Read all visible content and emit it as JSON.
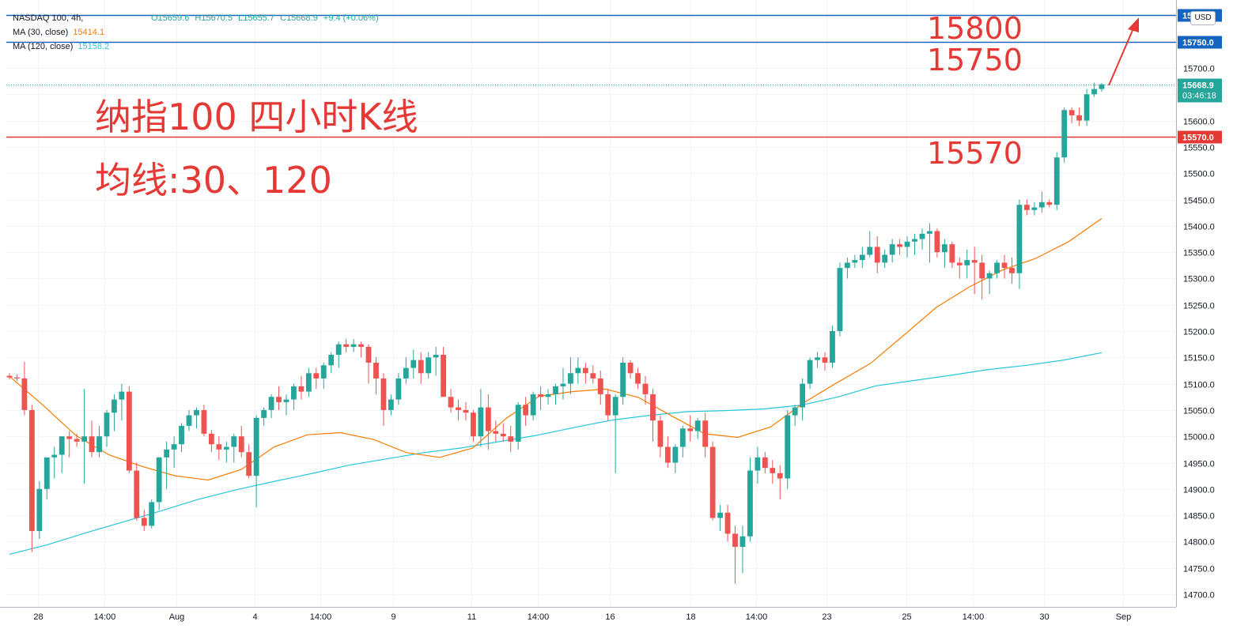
{
  "legend": {
    "symbol": "NASDAQ 100, 4h,",
    "open": "O15659.6",
    "high": "H15670.5",
    "low": "L15655.7",
    "close": "C15668.9",
    "change": "+9.4 (+0.06%)",
    "ma30_label": "MA (30, close)",
    "ma30_value": "15414.1",
    "ma120_label": "MA (120, close)",
    "ma120_value": "15158.2"
  },
  "currency": "USD",
  "annotations": {
    "title": "纳指100 四小时K线",
    "ma_text": "均线:30、120",
    "p1": "15800",
    "p2": "15750",
    "p3": "15570"
  },
  "colors": {
    "up": "#26a69a",
    "down": "#ef5350",
    "ma30": "#f57c00",
    "ma120": "#26c6da",
    "hline_blue": "#1565c0",
    "hline_red": "#e53935",
    "annotation": "#e53935"
  },
  "chart_data": {
    "type": "candlestick",
    "ylim": [
      14670,
      15830
    ],
    "y_ticks": [
      14700,
      14750,
      14800,
      14850,
      14900,
      14950,
      15000,
      15050,
      15100,
      15150,
      15200,
      15250,
      15300,
      15350,
      15400,
      15450,
      15500,
      15550,
      15600,
      15650,
      15700,
      15750
    ],
    "x_labels": [
      "28",
      "14:00",
      "Aug",
      "4",
      "14:00",
      "9",
      "11",
      "14:00",
      "16",
      "18",
      "14:00",
      "23",
      "25",
      "14:00",
      "30",
      "Sep"
    ],
    "horizontal_lines": [
      {
        "value": 15800.0,
        "label": "15800.0",
        "color": "#1565c0"
      },
      {
        "value": 15750.0,
        "label": "15750.0",
        "color": "#1565c0"
      },
      {
        "value": 15570.0,
        "label": "15570.0",
        "color": "#e53935"
      }
    ],
    "last_price": {
      "value": 15668.9,
      "label": "15668.9",
      "countdown": "03:46:18"
    },
    "candles": [
      [
        15115,
        15120,
        15108,
        15112
      ],
      [
        15112,
        15118,
        15105,
        15110
      ],
      [
        15110,
        15142,
        15040,
        15050
      ],
      [
        15050,
        15060,
        14780,
        14820
      ],
      [
        14820,
        14915,
        14805,
        14900
      ],
      [
        14900,
        14950,
        14880,
        14960
      ],
      [
        14960,
        14980,
        14920,
        14965
      ],
      [
        14965,
        15000,
        14930,
        15000
      ],
      [
        15000,
        15010,
        14960,
        14995
      ],
      [
        14995,
        15005,
        14980,
        14990
      ],
      [
        14990,
        15090,
        14910,
        15000
      ],
      [
        15000,
        15030,
        14960,
        14970
      ],
      [
        14970,
        15020,
        14960,
        15000
      ],
      [
        15000,
        15050,
        14980,
        15045
      ],
      [
        15045,
        15080,
        15010,
        15070
      ],
      [
        15070,
        15100,
        15030,
        15085
      ],
      [
        15085,
        15095,
        14930,
        14935
      ],
      [
        14935,
        14950,
        14840,
        14845
      ],
      [
        14845,
        14860,
        14820,
        14830
      ],
      [
        14830,
        14880,
        14825,
        14875
      ],
      [
        14875,
        14950,
        14860,
        14960
      ],
      [
        14960,
        14990,
        14900,
        14975
      ],
      [
        14975,
        15000,
        14940,
        14985
      ],
      [
        14985,
        15025,
        14970,
        15020
      ],
      [
        15020,
        15050,
        15010,
        15040
      ],
      [
        15040,
        15055,
        15015,
        15050
      ],
      [
        15050,
        15060,
        15000,
        15005
      ],
      [
        15005,
        15012,
        14970,
        14985
      ],
      [
        14985,
        15000,
        14955,
        14975
      ],
      [
        14975,
        14990,
        14950,
        14980
      ],
      [
        14980,
        15005,
        14950,
        15000
      ],
      [
        15000,
        15020,
        14960,
        14970
      ],
      [
        14970,
        14985,
        14920,
        14925
      ],
      [
        14925,
        15040,
        14865,
        15035
      ],
      [
        15035,
        15055,
        15020,
        15050
      ],
      [
        15050,
        15080,
        15035,
        15075
      ],
      [
        15075,
        15095,
        15050,
        15065
      ],
      [
        15065,
        15080,
        15040,
        15070
      ],
      [
        15070,
        15100,
        15050,
        15095
      ],
      [
        15095,
        15115,
        15070,
        15085
      ],
      [
        15085,
        15130,
        15075,
        15120
      ],
      [
        15120,
        15130,
        15090,
        15110
      ],
      [
        15110,
        15140,
        15090,
        15135
      ],
      [
        15135,
        15160,
        15120,
        15155
      ],
      [
        15155,
        15180,
        15130,
        15175
      ],
      [
        15175,
        15185,
        15160,
        15170
      ],
      [
        15170,
        15185,
        15160,
        15175
      ],
      [
        15175,
        15180,
        15150,
        15170
      ],
      [
        15170,
        15175,
        15100,
        15140
      ],
      [
        15140,
        15150,
        15080,
        15110
      ],
      [
        15110,
        15120,
        15020,
        15050
      ],
      [
        15050,
        15080,
        15040,
        15070
      ],
      [
        15070,
        15120,
        15060,
        15110
      ],
      [
        15110,
        15150,
        15100,
        15130
      ],
      [
        15130,
        15165,
        15110,
        15145
      ],
      [
        15145,
        15160,
        15100,
        15120
      ],
      [
        15120,
        15160,
        15110,
        15150
      ],
      [
        15150,
        15170,
        15115,
        15155
      ],
      [
        15155,
        15170,
        15080,
        15075
      ],
      [
        15075,
        15090,
        15045,
        15055
      ],
      [
        15055,
        15070,
        15030,
        15050
      ],
      [
        15050,
        15065,
        15030,
        15045
      ],
      [
        15045,
        15050,
        14990,
        15000
      ],
      [
        15000,
        15090,
        14980,
        15055
      ],
      [
        15055,
        15080,
        14975,
        15010
      ],
      [
        15010,
        15030,
        14990,
        15005
      ],
      [
        15005,
        15025,
        14990,
        15000
      ],
      [
        15000,
        15020,
        14970,
        14990
      ],
      [
        14990,
        15065,
        14975,
        15060
      ],
      [
        15060,
        15075,
        15020,
        15040
      ],
      [
        15040,
        15085,
        15030,
        15080
      ],
      [
        15080,
        15095,
        15050,
        15075
      ],
      [
        15075,
        15090,
        15060,
        15080
      ],
      [
        15080,
        15100,
        15060,
        15095
      ],
      [
        15095,
        15130,
        15070,
        15100
      ],
      [
        15100,
        15150,
        15080,
        15120
      ],
      [
        15120,
        15150,
        15100,
        15130
      ],
      [
        15130,
        15140,
        15100,
        15120
      ],
      [
        15120,
        15135,
        15100,
        15110
      ],
      [
        15110,
        15125,
        15060,
        15080
      ],
      [
        15080,
        15090,
        15030,
        15040
      ],
      [
        15040,
        15080,
        14930,
        15075
      ],
      [
        15075,
        15150,
        15060,
        15140
      ],
      [
        15140,
        15145,
        15110,
        15120
      ],
      [
        15120,
        15130,
        15090,
        15100
      ],
      [
        15100,
        15115,
        15060,
        15080
      ],
      [
        15080,
        15090,
        14990,
        15030
      ],
      [
        15030,
        15040,
        14960,
        14980
      ],
      [
        14980,
        15000,
        14940,
        14950
      ],
      [
        14950,
        14985,
        14930,
        14980
      ],
      [
        14980,
        15020,
        14960,
        15015
      ],
      [
        15015,
        15040,
        14990,
        15010
      ],
      [
        15010,
        15035,
        14995,
        15030
      ],
      [
        15030,
        15045,
        14960,
        14980
      ],
      [
        14980,
        14990,
        14840,
        14845
      ],
      [
        14845,
        14870,
        14820,
        14855
      ],
      [
        14855,
        14870,
        14800,
        14815
      ],
      [
        14815,
        14830,
        14720,
        14790
      ],
      [
        14790,
        14830,
        14740,
        14810
      ],
      [
        14810,
        14960,
        14800,
        14935
      ],
      [
        14935,
        14980,
        14910,
        14960
      ],
      [
        14960,
        14970,
        14930,
        14940
      ],
      [
        14940,
        14955,
        14910,
        14930
      ],
      [
        14930,
        14945,
        14880,
        14920
      ],
      [
        14920,
        15050,
        14900,
        15040
      ],
      [
        15040,
        15060,
        15020,
        15055
      ],
      [
        15055,
        15110,
        15030,
        15100
      ],
      [
        15100,
        15150,
        15090,
        15145
      ],
      [
        15145,
        15160,
        15130,
        15150
      ],
      [
        15150,
        15160,
        15125,
        15140
      ],
      [
        15140,
        15210,
        15130,
        15200
      ],
      [
        15200,
        15330,
        15190,
        15320
      ],
      [
        15320,
        15340,
        15300,
        15330
      ],
      [
        15330,
        15345,
        15320,
        15335
      ],
      [
        15335,
        15360,
        15320,
        15345
      ],
      [
        15345,
        15390,
        15340,
        15360
      ],
      [
        15360,
        15380,
        15310,
        15330
      ],
      [
        15330,
        15355,
        15320,
        15345
      ],
      [
        15345,
        15375,
        15330,
        15365
      ],
      [
        15365,
        15375,
        15345,
        15360
      ],
      [
        15360,
        15380,
        15340,
        15370
      ],
      [
        15370,
        15385,
        15345,
        15375
      ],
      [
        15375,
        15395,
        15355,
        15385
      ],
      [
        15385,
        15405,
        15330,
        15390
      ],
      [
        15390,
        15395,
        15340,
        15350
      ],
      [
        15350,
        15375,
        15320,
        15365
      ],
      [
        15365,
        15370,
        15320,
        15330
      ],
      [
        15330,
        15340,
        15300,
        15325
      ],
      [
        15325,
        15355,
        15300,
        15335
      ],
      [
        15335,
        15360,
        15270,
        15330
      ],
      [
        15330,
        15345,
        15260,
        15300
      ],
      [
        15300,
        15315,
        15270,
        15310
      ],
      [
        15310,
        15335,
        15300,
        15330
      ],
      [
        15330,
        15345,
        15300,
        15320
      ],
      [
        15320,
        15340,
        15290,
        15310
      ],
      [
        15310,
        15450,
        15280,
        15440
      ],
      [
        15440,
        15450,
        15420,
        15430
      ],
      [
        15430,
        15445,
        15420,
        15435
      ],
      [
        15435,
        15465,
        15425,
        15445
      ],
      [
        15445,
        15450,
        15435,
        15440
      ],
      [
        15440,
        15540,
        15430,
        15530
      ],
      [
        15530,
        15625,
        15520,
        15620
      ],
      [
        15620,
        15625,
        15595,
        15610
      ],
      [
        15610,
        15625,
        15590,
        15600
      ],
      [
        15600,
        15660,
        15590,
        15650
      ],
      [
        15650,
        15672,
        15645,
        15660
      ],
      [
        15660,
        15671,
        15655,
        15669
      ]
    ],
    "ma30": [
      15114,
      15060,
      15002,
      14965,
      14943,
      14925,
      14917,
      14937,
      14980,
      15003,
      15007,
      14994,
      14969,
      14960,
      14978,
      15034,
      15076,
      15085,
      15090,
      15074,
      15039,
      15005,
      14998,
      15018,
      15064,
      15102,
      15138,
      15191,
      15245,
      15284,
      15316,
      15338,
      15370,
      15414
    ],
    "ma120": [
      14776,
      14794,
      14816,
      14837,
      14858,
      14880,
      14898,
      14914,
      14929,
      14945,
      14957,
      14969,
      14978,
      14990,
      15002,
      15017,
      15031,
      15040,
      15047,
      15049,
      15052,
      15059,
      15075,
      15096,
      15106,
      15116,
      15127,
      15135,
      15145,
      15159
    ]
  }
}
